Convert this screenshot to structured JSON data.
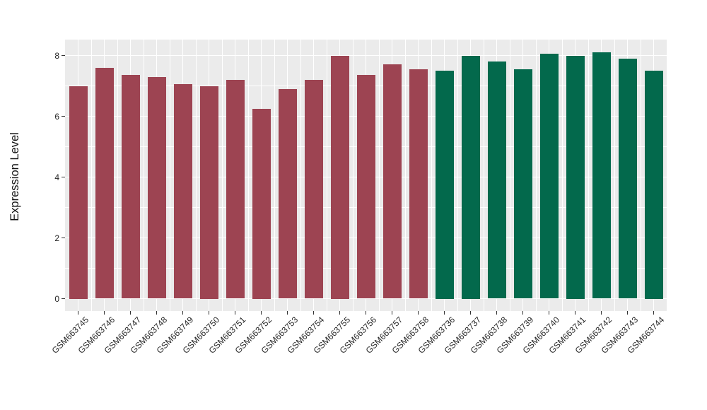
{
  "chart_data": {
    "type": "bar",
    "title": "",
    "xlabel": "",
    "ylabel": "Expression Level",
    "ylim": [
      -0.45,
      8.55
    ],
    "yticks": [
      0,
      2,
      4,
      6,
      8
    ],
    "yticks_minor": [
      1,
      3,
      5,
      7
    ],
    "grid": "white major and minor gridlines on grey panel, both axes",
    "legend_position": "none",
    "categories": [
      "GSM663745",
      "GSM663746",
      "GSM663747",
      "GSM663748",
      "GSM663749",
      "GSM663750",
      "GSM663751",
      "GSM663752",
      "GSM663753",
      "GSM663754",
      "GSM663755",
      "GSM663756",
      "GSM663757",
      "GSM663758",
      "GSM663736",
      "GSM663737",
      "GSM663738",
      "GSM663739",
      "GSM663740",
      "GSM663741",
      "GSM663742",
      "GSM663743",
      "GSM663744"
    ],
    "values": [
      7.0,
      7.6,
      7.35,
      7.3,
      7.05,
      7.0,
      7.2,
      6.25,
      6.9,
      7.2,
      8.0,
      7.35,
      7.7,
      7.55,
      7.5,
      8.0,
      7.8,
      7.55,
      8.05,
      8.0,
      8.1,
      7.9,
      7.5
    ],
    "bar_groups": [
      "maroon",
      "maroon",
      "maroon",
      "maroon",
      "maroon",
      "maroon",
      "maroon",
      "maroon",
      "maroon",
      "maroon",
      "maroon",
      "maroon",
      "maroon",
      "maroon",
      "green",
      "green",
      "green",
      "green",
      "green",
      "green",
      "green",
      "green",
      "green"
    ],
    "colors": {
      "maroon": "#9D4452",
      "green": "#03694C",
      "panel_bg": "#EBEBEB",
      "grid": "#FFFFFF",
      "axis_text": "#262626",
      "tick_mark": "#333333"
    }
  }
}
